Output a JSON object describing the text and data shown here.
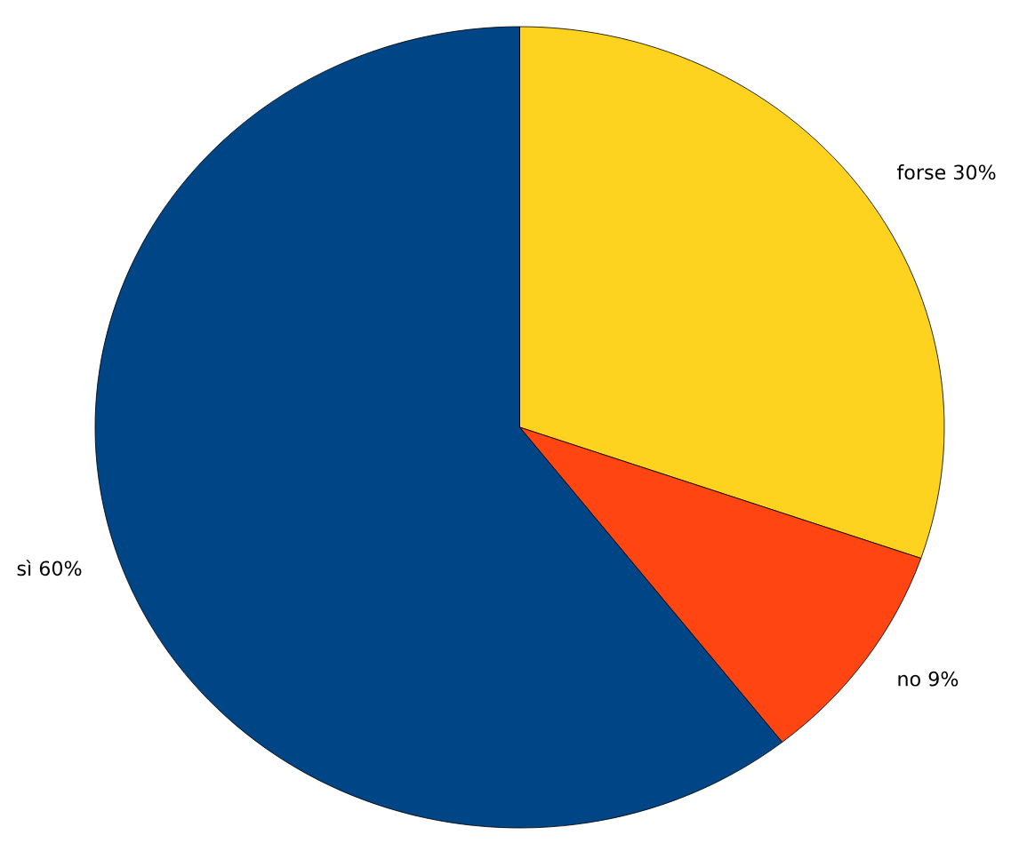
{
  "chart_data": {
    "type": "pie",
    "categories": [
      "forse",
      "no",
      "sì"
    ],
    "values": [
      30,
      9,
      60
    ],
    "value_labels": [
      "30%",
      "9%",
      "60%"
    ],
    "colors": [
      "#fdd320",
      "#ff4512",
      "#004586"
    ],
    "legend": false
  }
}
